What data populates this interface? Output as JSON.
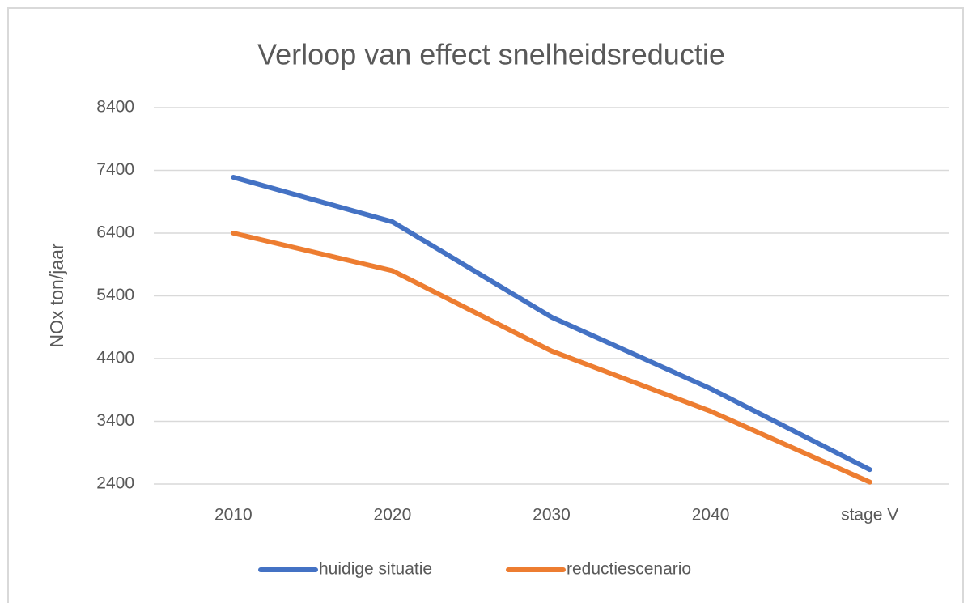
{
  "chart_data": {
    "type": "line",
    "title": "Verloop van effect snelheidsreductie",
    "y_label": "NOx ton/jaar",
    "categories": [
      "2010",
      "2020",
      "2030",
      "2040",
      "stage V"
    ],
    "series": [
      {
        "name": "huidige situatie",
        "color": "#4472c4",
        "values": [
          7290,
          6580,
          5060,
          3920,
          2630
        ]
      },
      {
        "name": "reductiescenario",
        "color": "#ed7d31",
        "values": [
          6400,
          5800,
          4520,
          3560,
          2430
        ]
      }
    ],
    "ylim": [
      2400,
      8400
    ],
    "yticks": [
      2400,
      3400,
      4400,
      5400,
      6400,
      7400,
      8400
    ],
    "grid": true,
    "legend": "bottom"
  }
}
